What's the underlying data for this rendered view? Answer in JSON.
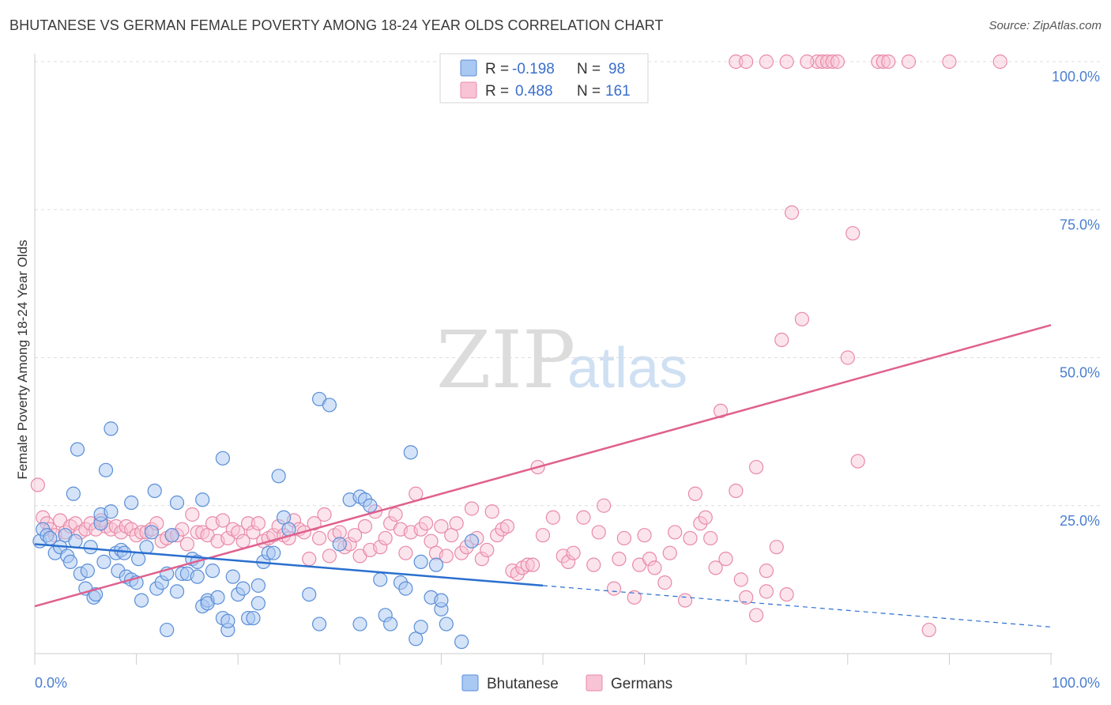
{
  "header": {
    "title": "BHUTANESE VS GERMAN FEMALE POVERTY AMONG 18-24 YEAR OLDS CORRELATION CHART",
    "source": "Source: ZipAtlas.com"
  },
  "watermark": {
    "zip": "ZIP",
    "atlas": "atlas"
  },
  "colors": {
    "bhutanese_fill": "#a9c8f2",
    "bhutanese_stroke": "#5a8ed8",
    "bhutanese_line": "#2a6fcf",
    "germans_fill": "#f8c3d4",
    "germans_stroke": "#e88aa8",
    "germans_line": "#e0608e",
    "tick_label": "#4a7fd0"
  },
  "legend": {
    "rows": [
      {
        "r_label": "R =",
        "r_value": "-0.198",
        "n_label": "N =",
        "n_value": "98"
      },
      {
        "r_label": "R =",
        "r_value": "0.488",
        "n_label": "N =",
        "n_value": "161"
      }
    ]
  },
  "bottom_legend": {
    "bhutanese": "Bhutanese",
    "germans": "Germans"
  },
  "chart_data": {
    "type": "scatter",
    "title": "BHUTANESE VS GERMAN FEMALE POVERTY AMONG 18-24 YEAR OLDS CORRELATION CHART",
    "xlabel": "",
    "ylabel": "Female Poverty Among 18-24 Year Olds",
    "xlim": [
      0,
      100
    ],
    "ylim": [
      0,
      100
    ],
    "x_tick_labels": [
      "0.0%",
      "100.0%"
    ],
    "y_ticks": [
      25,
      50,
      75,
      100
    ],
    "y_tick_labels": [
      "25.0%",
      "50.0%",
      "75.0%",
      "100.0%"
    ],
    "series": [
      {
        "name": "Bhutanese",
        "r": -0.198,
        "n": 98,
        "trend": {
          "x0": 0,
          "y0": 18.5,
          "x1": 50,
          "y1": 11.5,
          "dashed_to": 100,
          "dashed_y": 4.5
        },
        "points": [
          [
            0.5,
            19
          ],
          [
            0.8,
            21
          ],
          [
            1.2,
            20
          ],
          [
            1.5,
            19.5
          ],
          [
            2,
            17
          ],
          [
            2.5,
            18
          ],
          [
            3,
            20
          ],
          [
            3.2,
            16.5
          ],
          [
            3.5,
            15.5
          ],
          [
            4,
            19
          ],
          [
            3.8,
            27
          ],
          [
            4.2,
            34.5
          ],
          [
            4.5,
            13.5
          ],
          [
            5,
            11
          ],
          [
            5.2,
            14
          ],
          [
            5.5,
            18
          ],
          [
            5.8,
            9.5
          ],
          [
            6,
            10
          ],
          [
            6.5,
            22
          ],
          [
            6.5,
            23.5
          ],
          [
            6.8,
            15.5
          ],
          [
            7,
            31
          ],
          [
            7.5,
            38
          ],
          [
            7.5,
            24
          ],
          [
            8,
            17
          ],
          [
            8.2,
            14
          ],
          [
            8.5,
            17.5
          ],
          [
            8.8,
            17
          ],
          [
            9,
            13
          ],
          [
            9.5,
            25.5
          ],
          [
            9.5,
            12.5
          ],
          [
            10,
            12
          ],
          [
            10.2,
            16
          ],
          [
            10.5,
            9
          ],
          [
            11,
            18
          ],
          [
            11.5,
            20.5
          ],
          [
            11.8,
            27.5
          ],
          [
            12,
            11
          ],
          [
            12.5,
            12
          ],
          [
            13,
            13.5
          ],
          [
            13,
            4
          ],
          [
            13.5,
            20
          ],
          [
            14,
            10.5
          ],
          [
            14,
            25.5
          ],
          [
            14.5,
            13.5
          ],
          [
            15,
            13.5
          ],
          [
            15.5,
            16
          ],
          [
            16,
            15.5
          ],
          [
            16,
            13
          ],
          [
            16.5,
            8
          ],
          [
            16.5,
            26
          ],
          [
            17,
            9
          ],
          [
            17,
            8.5
          ],
          [
            17.5,
            14
          ],
          [
            18,
            9.5
          ],
          [
            18.5,
            6
          ],
          [
            18.5,
            33
          ],
          [
            19,
            4
          ],
          [
            19,
            5.5
          ],
          [
            19.5,
            13
          ],
          [
            20,
            10
          ],
          [
            20.5,
            11
          ],
          [
            21,
            6
          ],
          [
            21.5,
            6
          ],
          [
            22,
            11.5
          ],
          [
            22,
            8.5
          ],
          [
            22.5,
            15.5
          ],
          [
            23,
            17
          ],
          [
            23.5,
            17
          ],
          [
            24,
            30
          ],
          [
            24.5,
            23
          ],
          [
            25,
            21
          ],
          [
            27,
            10
          ],
          [
            28,
            5
          ],
          [
            28,
            43
          ],
          [
            29,
            42
          ],
          [
            30,
            18.5
          ],
          [
            31,
            26
          ],
          [
            32,
            26.5
          ],
          [
            32.5,
            26
          ],
          [
            32,
            5
          ],
          [
            33,
            25
          ],
          [
            34,
            12.5
          ],
          [
            34.5,
            6.5
          ],
          [
            35,
            5
          ],
          [
            36,
            12
          ],
          [
            36.5,
            11
          ],
          [
            37,
            34
          ],
          [
            37.5,
            2.5
          ],
          [
            38,
            15.5
          ],
          [
            38,
            4.5
          ],
          [
            39,
            9.5
          ],
          [
            39.5,
            15
          ],
          [
            40,
            7.5
          ],
          [
            40,
            9
          ],
          [
            40.5,
            5
          ],
          [
            42,
            2
          ],
          [
            43,
            19
          ]
        ]
      },
      {
        "name": "Germans",
        "r": 0.488,
        "n": 161,
        "trend": {
          "x0": 0,
          "y0": 8,
          "x1": 100,
          "y1": 55.5
        },
        "points": [
          [
            0.3,
            28.5
          ],
          [
            0.8,
            23
          ],
          [
            1.2,
            22
          ],
          [
            1.5,
            21
          ],
          [
            2,
            20
          ],
          [
            2.5,
            22.5
          ],
          [
            3,
            20.5
          ],
          [
            3.5,
            21.5
          ],
          [
            4,
            22
          ],
          [
            4.5,
            20.5
          ],
          [
            5,
            21
          ],
          [
            5.5,
            22
          ],
          [
            6,
            21
          ],
          [
            6.5,
            22.5
          ],
          [
            7,
            21.5
          ],
          [
            7.5,
            21
          ],
          [
            8,
            21.5
          ],
          [
            8.5,
            20.5
          ],
          [
            9,
            21.5
          ],
          [
            9.5,
            21
          ],
          [
            10,
            20
          ],
          [
            10.5,
            20.5
          ],
          [
            11,
            20.5
          ],
          [
            11.5,
            21
          ],
          [
            12,
            22
          ],
          [
            12.5,
            19
          ],
          [
            13,
            19.5
          ],
          [
            13.5,
            20
          ],
          [
            14,
            20
          ],
          [
            14.5,
            21
          ],
          [
            15,
            18.5
          ],
          [
            15.5,
            23.5
          ],
          [
            16,
            20.5
          ],
          [
            16.5,
            20.5
          ],
          [
            17,
            20
          ],
          [
            17.5,
            22
          ],
          [
            18,
            19
          ],
          [
            18.5,
            22.5
          ],
          [
            19,
            19.5
          ],
          [
            19.5,
            21
          ],
          [
            20,
            20.5
          ],
          [
            20.5,
            19
          ],
          [
            21,
            22
          ],
          [
            21.5,
            20.5
          ],
          [
            22,
            22
          ],
          [
            22.5,
            19
          ],
          [
            23,
            19.5
          ],
          [
            23.5,
            20
          ],
          [
            24,
            21.5
          ],
          [
            24.5,
            20
          ],
          [
            25,
            19.5
          ],
          [
            25.5,
            22.5
          ],
          [
            26,
            21
          ],
          [
            26.5,
            20.5
          ],
          [
            27,
            16
          ],
          [
            27.5,
            22
          ],
          [
            28,
            19.5
          ],
          [
            28.5,
            23.5
          ],
          [
            29,
            16.5
          ],
          [
            29.5,
            20
          ],
          [
            30,
            20.5
          ],
          [
            30.5,
            18
          ],
          [
            31,
            18.5
          ],
          [
            31.5,
            20
          ],
          [
            32,
            16.5
          ],
          [
            32.5,
            21.5
          ],
          [
            33,
            17.5
          ],
          [
            33.5,
            24
          ],
          [
            34,
            18
          ],
          [
            34.5,
            19.5
          ],
          [
            35,
            22
          ],
          [
            35.5,
            23.5
          ],
          [
            36,
            21
          ],
          [
            36.5,
            17
          ],
          [
            37,
            20.5
          ],
          [
            37.5,
            27
          ],
          [
            38,
            21
          ],
          [
            38.5,
            22
          ],
          [
            39,
            19
          ],
          [
            39.5,
            17
          ],
          [
            40,
            21.5
          ],
          [
            40.5,
            16.5
          ],
          [
            41,
            20
          ],
          [
            41.5,
            22
          ],
          [
            42,
            17
          ],
          [
            42.5,
            18
          ],
          [
            43,
            24.5
          ],
          [
            43.5,
            19.5
          ],
          [
            44,
            16
          ],
          [
            44.5,
            17.5
          ],
          [
            45,
            24
          ],
          [
            45.5,
            20
          ],
          [
            46,
            21
          ],
          [
            46.5,
            21.5
          ],
          [
            47,
            14
          ],
          [
            47.5,
            13.5
          ],
          [
            48,
            14.5
          ],
          [
            48.5,
            15
          ],
          [
            49,
            15
          ],
          [
            49.5,
            31.5
          ],
          [
            50,
            20
          ],
          [
            51,
            23
          ],
          [
            52,
            16.5
          ],
          [
            52.5,
            15.5
          ],
          [
            53,
            17
          ],
          [
            54,
            23
          ],
          [
            55,
            15
          ],
          [
            55.5,
            20.5
          ],
          [
            56,
            25
          ],
          [
            57,
            11
          ],
          [
            57.5,
            16
          ],
          [
            58,
            19.5
          ],
          [
            59,
            9.5
          ],
          [
            59.5,
            15
          ],
          [
            60,
            20
          ],
          [
            60.5,
            16
          ],
          [
            61,
            14.5
          ],
          [
            62,
            12
          ],
          [
            62.5,
            17
          ],
          [
            63,
            20.5
          ],
          [
            64,
            9
          ],
          [
            64.5,
            19.5
          ],
          [
            65,
            27
          ],
          [
            65.5,
            22
          ],
          [
            66,
            23
          ],
          [
            66.5,
            19.5
          ],
          [
            67,
            14.5
          ],
          [
            67.5,
            41
          ],
          [
            68,
            16
          ],
          [
            69,
            27.5
          ],
          [
            69.5,
            12.5
          ],
          [
            70,
            9.5
          ],
          [
            71,
            31.5
          ],
          [
            71,
            6.5
          ],
          [
            72,
            10.5
          ],
          [
            72,
            14
          ],
          [
            73,
            18
          ],
          [
            74,
            10
          ],
          [
            73.5,
            53
          ],
          [
            74.5,
            74.5
          ],
          [
            75.5,
            56.5
          ],
          [
            77,
            100
          ],
          [
            77.5,
            100
          ],
          [
            78,
            100
          ],
          [
            78.5,
            100
          ],
          [
            79,
            100
          ],
          [
            80,
            50
          ],
          [
            80.5,
            71
          ],
          [
            81,
            32.5
          ],
          [
            83,
            100
          ],
          [
            83.5,
            100
          ],
          [
            84,
            100
          ],
          [
            86,
            100
          ],
          [
            88,
            4
          ],
          [
            90,
            100
          ],
          [
            95,
            100
          ],
          [
            69,
            100
          ],
          [
            70,
            100
          ],
          [
            72,
            100
          ],
          [
            74,
            100
          ],
          [
            76,
            100
          ]
        ]
      }
    ]
  }
}
